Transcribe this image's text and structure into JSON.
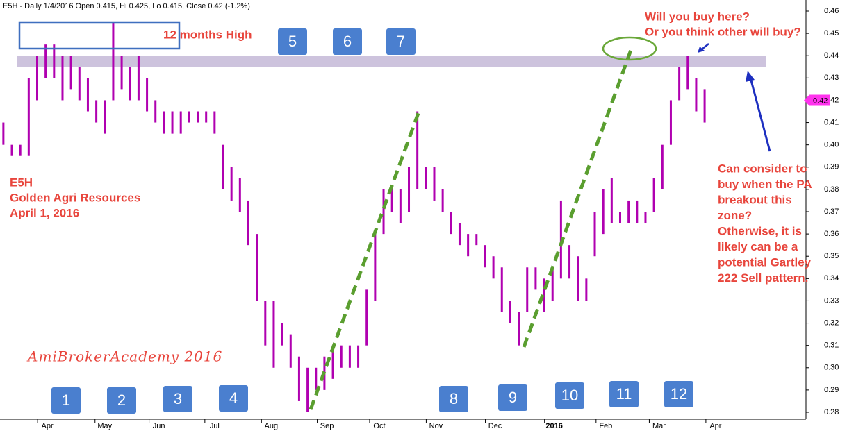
{
  "chart_data": {
    "type": "hlbar",
    "title": "E5H - Daily 1/4/2016 Open 0.415, Hi 0.425, Lo 0.415, Close 0.42 (-1.2%)",
    "series": [
      {
        "name": "E5H",
        "color": "#b000b0",
        "high": [
          0.41,
          0.4,
          0.4,
          0.43,
          0.44,
          0.445,
          0.445,
          0.44,
          0.44,
          0.435,
          0.43,
          0.42,
          0.42,
          0.455,
          0.44,
          0.435,
          0.44,
          0.43,
          0.42,
          0.415,
          0.415,
          0.415,
          0.415,
          0.415,
          0.415,
          0.415,
          0.4,
          0.39,
          0.385,
          0.375,
          0.36,
          0.33,
          0.33,
          0.32,
          0.315,
          0.305,
          0.3,
          0.3,
          0.305,
          0.31,
          0.31,
          0.31,
          0.31,
          0.335,
          0.36,
          0.38,
          0.38,
          0.38,
          0.39,
          0.415,
          0.39,
          0.39,
          0.38,
          0.37,
          0.365,
          0.36,
          0.36,
          0.355,
          0.35,
          0.345,
          0.33,
          0.325,
          0.345,
          0.345,
          0.34,
          0.345,
          0.375,
          0.355,
          0.35,
          0.34,
          0.37,
          0.38,
          0.385,
          0.37,
          0.375,
          0.375,
          0.37,
          0.385,
          0.4,
          0.42,
          0.435,
          0.44,
          0.43,
          0.425
        ],
        "low": [
          0.4,
          0.395,
          0.395,
          0.395,
          0.42,
          0.43,
          0.43,
          0.42,
          0.425,
          0.42,
          0.415,
          0.41,
          0.405,
          0.42,
          0.425,
          0.42,
          0.42,
          0.415,
          0.41,
          0.405,
          0.405,
          0.405,
          0.41,
          0.41,
          0.41,
          0.405,
          0.38,
          0.375,
          0.37,
          0.355,
          0.33,
          0.31,
          0.3,
          0.31,
          0.3,
          0.285,
          0.28,
          0.29,
          0.29,
          0.295,
          0.3,
          0.3,
          0.3,
          0.31,
          0.33,
          0.36,
          0.37,
          0.365,
          0.37,
          0.38,
          0.38,
          0.375,
          0.37,
          0.36,
          0.355,
          0.35,
          0.355,
          0.345,
          0.34,
          0.325,
          0.32,
          0.31,
          0.325,
          0.335,
          0.325,
          0.33,
          0.34,
          0.34,
          0.33,
          0.33,
          0.35,
          0.36,
          0.365,
          0.365,
          0.365,
          0.365,
          0.365,
          0.37,
          0.38,
          0.4,
          0.42,
          0.425,
          0.415,
          0.41
        ]
      }
    ],
    "xlim": [
      -0.4,
      95
    ],
    "xticks": [
      {
        "value": 5.2,
        "label": "Apr"
      },
      {
        "value": 12.0,
        "label": "May"
      },
      {
        "value": 18.4,
        "label": "Jun"
      },
      {
        "value": 25.0,
        "label": "Jul"
      },
      {
        "value": 31.7,
        "label": "Aug"
      },
      {
        "value": 38.3,
        "label": "Sep"
      },
      {
        "value": 44.5,
        "label": "Oct"
      },
      {
        "value": 51.2,
        "label": "Nov"
      },
      {
        "value": 58.2,
        "label": "Dec"
      },
      {
        "value": 65.2,
        "label": "2016"
      },
      {
        "value": 71.3,
        "label": "Feb"
      },
      {
        "value": 77.6,
        "label": "Mar"
      },
      {
        "value": 84.3,
        "label": "Apr"
      }
    ],
    "ylim": [
      0.28,
      0.46
    ],
    "yticks": [
      0.28,
      0.29,
      {
        "value": 0.3,
        "label": "0.30"
      },
      0.31,
      0.32,
      0.33,
      0.34,
      0.35,
      0.36,
      0.37,
      0.38,
      0.39,
      {
        "value": 0.4,
        "label": "0.40"
      },
      0.41,
      0.42,
      0.43,
      0.44,
      0.45,
      0.46
    ],
    "zone": {
      "low": 0.435,
      "high": 0.44,
      "color": "#cdc3dd"
    },
    "last_price": 0.42,
    "high_note": "12 months High",
    "stock_note": [
      "E5H",
      "Golden Agri Resources",
      "April 1, 2016"
    ],
    "question_note": [
      "Will you buy here?",
      "Or you think other will buy?"
    ],
    "advice_note": [
      "Can consider to",
      "buy when the PA",
      "breakout this",
      "zone?",
      "Otherwise, it is",
      "likely can be a",
      "potential Gartley",
      "222 Sell pattern."
    ],
    "watermark": "AmiBrokerAcademy  2016",
    "period_labels": [
      "1",
      "2",
      "3",
      "4",
      "5",
      "6",
      "7",
      "8",
      "9",
      "10",
      "11",
      "12"
    ]
  }
}
